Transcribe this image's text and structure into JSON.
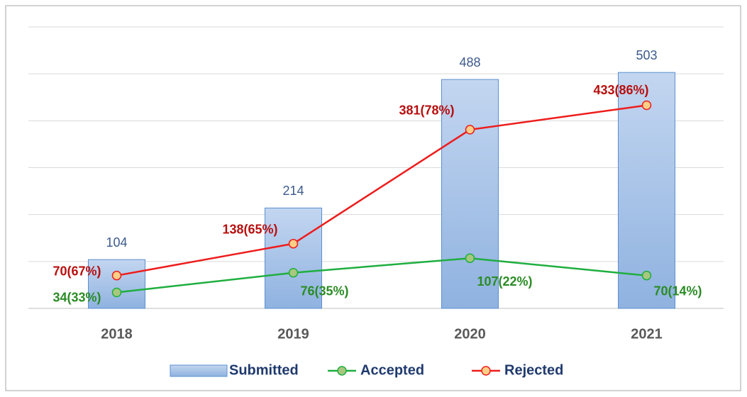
{
  "chart_data": {
    "type": "bar",
    "categories": [
      "2018",
      "2019",
      "2020",
      "2021"
    ],
    "ylim": [
      0,
      600
    ],
    "yticks": [
      0,
      100,
      200,
      300,
      400,
      500,
      600
    ],
    "grid": true,
    "legend": "bottom",
    "series": [
      {
        "name": "Submitted",
        "type": "bar",
        "color": "#9dbde6",
        "values": [
          104,
          214,
          488,
          503
        ]
      },
      {
        "name": "Accepted",
        "type": "line",
        "color": "#1fae3f",
        "marker_color": "#a8c77e",
        "label_color": "#2b8c25",
        "values": [
          34,
          76,
          107,
          70
        ],
        "value_labels": [
          "34(33%)",
          "76(35%)",
          "107(22%)",
          "70(14%)"
        ]
      },
      {
        "name": "Rejected",
        "type": "line",
        "color": "#ee1c1c",
        "marker_color": "#fccf86",
        "label_color": "#b80f0f",
        "values": [
          70,
          138,
          381,
          433
        ],
        "value_labels": [
          "70(67%)",
          "138(65%)",
          "381(78%)",
          "433(86%)"
        ]
      }
    ]
  }
}
